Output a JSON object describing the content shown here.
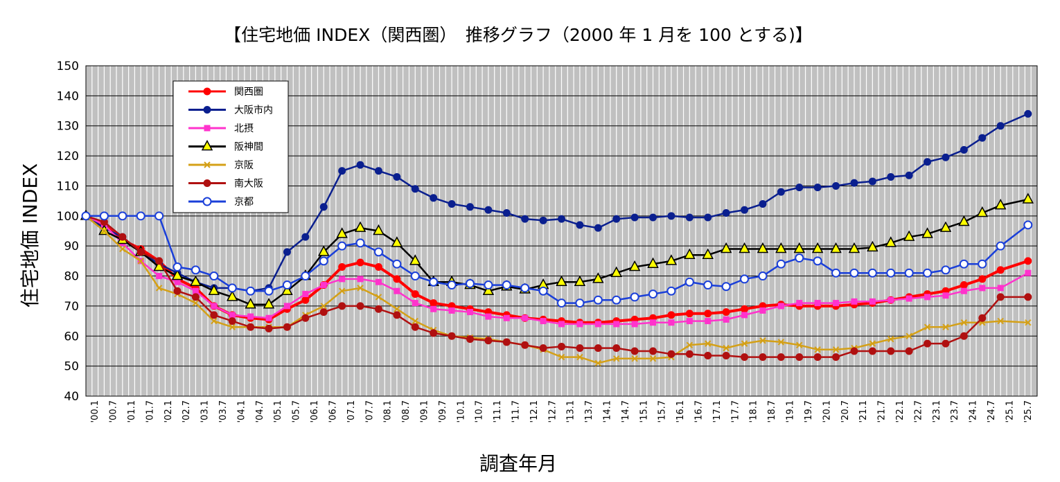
{
  "chart_data": {
    "type": "line",
    "title": "【住宅地価 INDEX（関西圏）　推移グラフ（2000 年 1 月を 100 とする)】",
    "xlabel": "調査年月",
    "ylabel": "住宅地価 INDEX",
    "ylim": [
      40,
      150
    ],
    "yticks": [
      40,
      50,
      60,
      70,
      80,
      90,
      100,
      110,
      120,
      130,
      140,
      150
    ],
    "grid": true,
    "legend_placement": "top-left",
    "x_tick_labels": [
      "'00.1",
      "'00.7",
      "'01.1",
      "'01.7",
      "'02.1",
      "'02.7",
      "'03.1",
      "'03.7",
      "'04.1",
      "'04.7",
      "'05.1",
      "'05.7",
      "'06.1",
      "'06.7",
      "'07.1",
      "'07.7",
      "'08.1",
      "'08.7",
      "'09.1",
      "'09.7",
      "'10.1",
      "'10.7",
      "'11.1",
      "'11.7",
      "'12.1",
      "'12.7",
      "'13.1",
      "'13.7",
      "'14.1",
      "'14.7",
      "'15.1",
      "'15.7",
      "'16.1",
      "'16.7",
      "'17.1",
      "'17.7",
      "'18.1",
      "'18.7",
      "'19.1",
      "'19.7",
      "'20.1",
      "'20.7",
      "'21.1",
      "'21.7",
      "'22.1",
      "'22.7",
      "'23.1",
      "'23.7",
      "'24.1",
      "'24.7",
      "'25.1",
      "'25.7"
    ],
    "x": [
      2000.0,
      2000.5,
      2001.0,
      2001.5,
      2002.0,
      2002.5,
      2003.0,
      2003.5,
      2004.0,
      2004.5,
      2005.0,
      2005.5,
      2006.0,
      2006.5,
      2007.0,
      2007.5,
      2008.0,
      2008.5,
      2009.0,
      2009.5,
      2010.0,
      2010.5,
      2011.0,
      2011.5,
      2012.0,
      2012.5,
      2013.0,
      2013.5,
      2014.0,
      2014.5,
      2015.0,
      2015.5,
      2016.0,
      2016.5,
      2017.0,
      2017.5,
      2018.0,
      2018.5,
      2019.0,
      2019.5,
      2020.0,
      2020.5,
      2021.0,
      2021.5,
      2022.0,
      2022.5,
      2023.0,
      2023.5,
      2024.0,
      2024.5,
      2025.0,
      2025.75
    ],
    "series": [
      {
        "name": "関西圏",
        "color": "#ff0000",
        "marker": "circle-filled",
        "values": [
          100,
          97,
          92,
          89,
          85,
          79,
          76,
          70,
          67,
          66,
          65.5,
          69,
          72,
          77,
          83,
          84.5,
          83,
          79,
          74,
          71,
          70,
          69,
          68,
          67,
          66,
          65.5,
          65,
          64.5,
          64.5,
          65,
          65.5,
          66,
          67,
          67.5,
          67.5,
          68,
          69,
          70,
          70.5,
          70,
          70,
          70,
          70.5,
          71,
          72,
          73,
          74,
          75,
          77,
          79,
          82,
          85
        ]
      },
      {
        "name": "大阪市内",
        "color": "#0a1f8f",
        "marker": "circle-filled",
        "values": [
          100,
          96,
          93,
          88,
          84,
          81,
          78,
          76,
          76,
          75,
          76,
          88,
          93,
          103,
          115,
          117,
          115,
          113,
          109,
          106,
          104,
          103,
          102,
          101,
          99,
          98.5,
          99,
          97,
          96,
          99,
          99.5,
          99.5,
          100,
          99.5,
          99.5,
          101,
          102,
          104,
          108,
          109.5,
          109.5,
          110,
          111,
          111.5,
          113,
          113.5,
          118,
          119.5,
          122,
          126,
          130,
          134
        ]
      },
      {
        "name": "北摂",
        "color": "#ff33cc",
        "marker": "square",
        "values": [
          100,
          97,
          91,
          85,
          80,
          78,
          75,
          70,
          67,
          66.5,
          66,
          70,
          74,
          77,
          79,
          79,
          78,
          75,
          71,
          69,
          68.5,
          68,
          66.5,
          66,
          66,
          65,
          64,
          64,
          64,
          64,
          64,
          64.5,
          64.5,
          65,
          65,
          65.5,
          67,
          68.5,
          70,
          71,
          71,
          71,
          71.5,
          71.5,
          72,
          72.5,
          73,
          73.5,
          75,
          76,
          76,
          81
        ]
      },
      {
        "name": "阪神間",
        "color": "#000000",
        "fill": "#ffff00",
        "marker": "triangle",
        "values": [
          100,
          95,
          92,
          88,
          83,
          80,
          78,
          75,
          73,
          70.5,
          70.5,
          75,
          80,
          88,
          94,
          96,
          95,
          91,
          85,
          78,
          78,
          77,
          75,
          76.5,
          75.5,
          77,
          78,
          78,
          79,
          81,
          83,
          84,
          85,
          87,
          87,
          89,
          89,
          89,
          89,
          89,
          89,
          89,
          89,
          89.5,
          91,
          93,
          94,
          96,
          98,
          101,
          103.5,
          105.5
        ]
      },
      {
        "name": "京阪",
        "color": "#d4a017",
        "marker": "x",
        "values": [
          100,
          95,
          89,
          85,
          76,
          74,
          71,
          65,
          63,
          63,
          63,
          63,
          67,
          70,
          75,
          76,
          73,
          69,
          65,
          62,
          60,
          59.5,
          59,
          58,
          57,
          55.5,
          53,
          53,
          51,
          52.5,
          52.5,
          52.5,
          53,
          57,
          57.5,
          56,
          57.5,
          58.5,
          58,
          57,
          55.5,
          55.5,
          56,
          57.5,
          59,
          60,
          63,
          63,
          64.5,
          64.5,
          65,
          64.5
        ]
      },
      {
        "name": "南大阪",
        "color": "#b01010",
        "marker": "circle-filled",
        "values": [
          100,
          98,
          93,
          88,
          85,
          75,
          73,
          67,
          65,
          63,
          62.5,
          63,
          66,
          68,
          70,
          70,
          69,
          67,
          63,
          61,
          60,
          59,
          58.5,
          58,
          57,
          56,
          56.5,
          56,
          56,
          56,
          55,
          55,
          54,
          54,
          53.5,
          53.5,
          53,
          53,
          53,
          53,
          53,
          53,
          55,
          55,
          55,
          55,
          57.5,
          57.5,
          60,
          66,
          73,
          73
        ]
      },
      {
        "name": "京都",
        "color": "#1a3fd9",
        "marker": "circle-open",
        "values": [
          100,
          100,
          100,
          100,
          100,
          83,
          82,
          80,
          76,
          75,
          75,
          77,
          80,
          85,
          90,
          91,
          88,
          84,
          80,
          78,
          77,
          77.5,
          77,
          77,
          76,
          75,
          71,
          71,
          72,
          72,
          73,
          74,
          75,
          78,
          77,
          76.5,
          79,
          80,
          84,
          86,
          85,
          81,
          81,
          81,
          81,
          81,
          81,
          82,
          84,
          84,
          90,
          97
        ]
      }
    ]
  }
}
